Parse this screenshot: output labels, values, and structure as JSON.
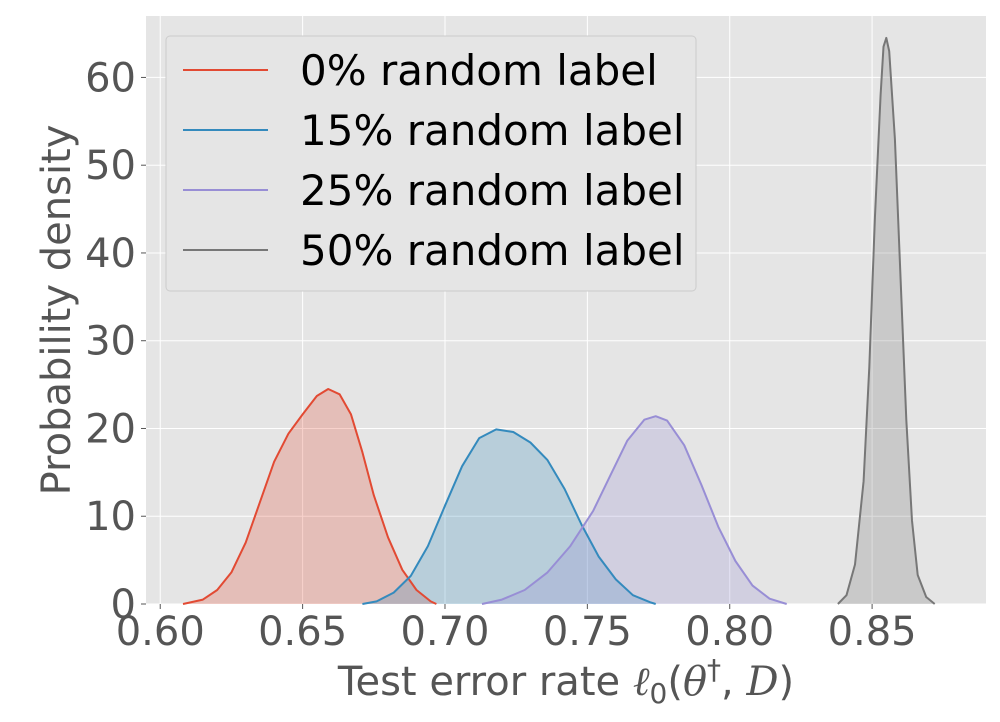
{
  "chart_data": {
    "type": "area",
    "xlabel": "Test error rate ℓ0(θ†, D)",
    "xlabel_parts": {
      "prefix": "Test error rate ",
      "ell": "ℓ",
      "ell_sub": "0",
      "open": "(",
      "theta": "θ",
      "dagger": "†",
      "mid": ", ",
      "D": "D",
      "close": ")"
    },
    "ylabel": "Probability density",
    "xlim": [
      0.595,
      0.89
    ],
    "ylim": [
      0,
      67
    ],
    "x_ticks": [
      0.6,
      0.65,
      0.7,
      0.75,
      0.8,
      0.85
    ],
    "x_tick_labels": [
      "0.60",
      "0.65",
      "0.70",
      "0.75",
      "0.80",
      "0.85"
    ],
    "y_ticks": [
      0,
      10,
      20,
      30,
      40,
      50,
      60
    ],
    "y_tick_labels": [
      "0",
      "10",
      "20",
      "30",
      "40",
      "50",
      "60"
    ],
    "grid": true,
    "legend_position": "top-left",
    "series": [
      {
        "name": "0% random label",
        "color": "#E24A33",
        "points": [
          [
            0.608,
            0.0
          ],
          [
            0.615,
            0.5
          ],
          [
            0.62,
            1.6
          ],
          [
            0.625,
            3.6
          ],
          [
            0.63,
            7.0
          ],
          [
            0.635,
            11.6
          ],
          [
            0.64,
            16.2
          ],
          [
            0.645,
            19.4
          ],
          [
            0.65,
            21.6
          ],
          [
            0.655,
            23.7
          ],
          [
            0.659,
            24.5
          ],
          [
            0.663,
            23.9
          ],
          [
            0.667,
            21.6
          ],
          [
            0.671,
            17.3
          ],
          [
            0.675,
            12.4
          ],
          [
            0.68,
            7.6
          ],
          [
            0.685,
            3.9
          ],
          [
            0.69,
            1.6
          ],
          [
            0.695,
            0.3
          ],
          [
            0.697,
            0.0
          ]
        ]
      },
      {
        "name": "15% random label",
        "color": "#348ABD",
        "points": [
          [
            0.671,
            0.0
          ],
          [
            0.676,
            0.3
          ],
          [
            0.682,
            1.3
          ],
          [
            0.688,
            3.2
          ],
          [
            0.694,
            6.6
          ],
          [
            0.7,
            11.2
          ],
          [
            0.706,
            15.7
          ],
          [
            0.712,
            18.9
          ],
          [
            0.718,
            19.9
          ],
          [
            0.724,
            19.6
          ],
          [
            0.73,
            18.4
          ],
          [
            0.736,
            16.4
          ],
          [
            0.742,
            13.1
          ],
          [
            0.748,
            9.0
          ],
          [
            0.754,
            5.4
          ],
          [
            0.76,
            2.8
          ],
          [
            0.766,
            1.0
          ],
          [
            0.772,
            0.2
          ],
          [
            0.774,
            0.0
          ]
        ]
      },
      {
        "name": "25% random label",
        "color": "#988ED5",
        "points": [
          [
            0.713,
            0.0
          ],
          [
            0.72,
            0.5
          ],
          [
            0.728,
            1.6
          ],
          [
            0.736,
            3.6
          ],
          [
            0.744,
            6.6
          ],
          [
            0.752,
            10.6
          ],
          [
            0.758,
            14.6
          ],
          [
            0.764,
            18.6
          ],
          [
            0.77,
            21.0
          ],
          [
            0.774,
            21.4
          ],
          [
            0.778,
            20.9
          ],
          [
            0.784,
            18.1
          ],
          [
            0.79,
            13.6
          ],
          [
            0.796,
            8.8
          ],
          [
            0.802,
            4.9
          ],
          [
            0.808,
            2.1
          ],
          [
            0.814,
            0.6
          ],
          [
            0.82,
            0.0
          ]
        ]
      },
      {
        "name": "50% random label",
        "color": "#777777",
        "points": [
          [
            0.838,
            0.0
          ],
          [
            0.841,
            1.0
          ],
          [
            0.844,
            4.5
          ],
          [
            0.847,
            14.0
          ],
          [
            0.849,
            27.0
          ],
          [
            0.851,
            44.0
          ],
          [
            0.853,
            58.0
          ],
          [
            0.854,
            63.5
          ],
          [
            0.855,
            64.5
          ],
          [
            0.856,
            63.0
          ],
          [
            0.858,
            53.0
          ],
          [
            0.86,
            37.0
          ],
          [
            0.862,
            21.0
          ],
          [
            0.864,
            9.5
          ],
          [
            0.866,
            3.3
          ],
          [
            0.869,
            0.8
          ],
          [
            0.872,
            0.0
          ]
        ]
      }
    ]
  }
}
